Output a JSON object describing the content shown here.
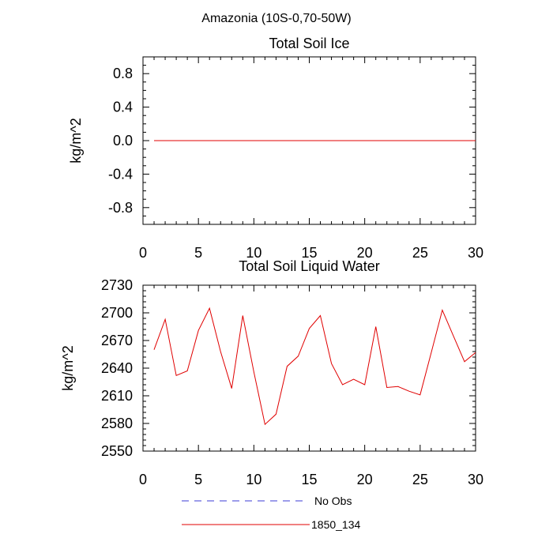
{
  "figure": {
    "title": "Amazonia (10S-0,70-50W)"
  },
  "chart_data": [
    {
      "type": "line",
      "title": "Total Soil Ice",
      "xlabel": "",
      "ylabel": "kg/m^2",
      "xlim": [
        0,
        30
      ],
      "ylim": [
        -1.0,
        1.0
      ],
      "xticks": [
        0,
        5,
        10,
        15,
        20,
        25,
        30
      ],
      "xtick_labels": [
        "0",
        "5",
        "10",
        "15",
        "20",
        "25",
        "30"
      ],
      "yticks": [
        -0.8,
        -0.4,
        0.0,
        0.4,
        0.8
      ],
      "ytick_labels": [
        "-0.8",
        "-0.4",
        "0.0",
        "0.4",
        "0.8"
      ],
      "grid": false,
      "series": [
        {
          "name": "1850_134",
          "color": "#e00000",
          "x": [
            1,
            2,
            3,
            4,
            5,
            6,
            7,
            8,
            9,
            10,
            11,
            12,
            13,
            14,
            15,
            16,
            17,
            18,
            19,
            20,
            21,
            22,
            23,
            24,
            25,
            26,
            27,
            28,
            29,
            30
          ],
          "values": [
            0,
            0,
            0,
            0,
            0,
            0,
            0,
            0,
            0,
            0,
            0,
            0,
            0,
            0,
            0,
            0,
            0,
            0,
            0,
            0,
            0,
            0,
            0,
            0,
            0,
            0,
            0,
            0,
            0,
            0
          ]
        }
      ]
    },
    {
      "type": "line",
      "title": "Total Soil Liquid Water",
      "xlabel": "",
      "ylabel": "kg/m^2",
      "xlim": [
        0,
        30
      ],
      "ylim": [
        2550,
        2730
      ],
      "xticks": [
        0,
        5,
        10,
        15,
        20,
        25,
        30
      ],
      "xtick_labels": [
        "0",
        "5",
        "10",
        "15",
        "20",
        "25",
        "30"
      ],
      "yticks": [
        2550,
        2580,
        2610,
        2640,
        2670,
        2700,
        2730
      ],
      "ytick_labels": [
        "2550",
        "2580",
        "2610",
        "2640",
        "2670",
        "2700",
        "2730"
      ],
      "grid": false,
      "series": [
        {
          "name": "1850_134",
          "color": "#e00000",
          "x": [
            1,
            2,
            3,
            4,
            5,
            6,
            7,
            8,
            9,
            10,
            11,
            12,
            13,
            14,
            15,
            16,
            17,
            18,
            19,
            20,
            21,
            22,
            23,
            24,
            25,
            26,
            27,
            28,
            29,
            30
          ],
          "values": [
            2660,
            2693,
            2632,
            2637,
            2681,
            2705,
            2658,
            2618,
            2697,
            2636,
            2579,
            2590,
            2642,
            2653,
            2683,
            2697,
            2645,
            2622,
            2628,
            2622,
            2685,
            2619,
            2620,
            2615,
            2611,
            2657,
            2703,
            2675,
            2647,
            2657
          ]
        }
      ]
    }
  ],
  "legend": {
    "placement": "bottom",
    "entries": [
      {
        "label": "No Obs",
        "color": "#3b3bd6",
        "style": "dashed"
      },
      {
        "label": "1850_134",
        "color": "#e00000",
        "style": "solid"
      }
    ]
  }
}
